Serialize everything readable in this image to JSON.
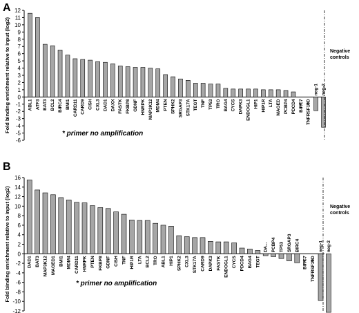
{
  "chart_data": [
    {
      "type": "bar",
      "panel": "A",
      "ylabel": "Fold binding enrichment relative to input (log2)",
      "ylim": [
        -6,
        12
      ],
      "yticks": [
        -6,
        -5,
        -4,
        -3,
        -2,
        -1,
        0,
        1,
        2,
        3,
        4,
        5,
        6,
        7,
        8,
        9,
        10,
        11,
        12
      ],
      "categories": [
        "ABL1",
        "ATF3",
        "BAT3",
        "BCL2",
        "BIRC4",
        "BMI1",
        "CARD11",
        "CARD9",
        "CISH",
        "CXL3",
        "DAD1",
        "DAXX",
        "FASTK",
        "FKBP8",
        "GDNF",
        "HNRPK",
        "MAP3K12",
        "MDM4",
        "PTEN",
        "SPHK2",
        "SRGAP3",
        "STK17A",
        "TEGT",
        "TNF",
        "TP53",
        "TRO",
        "BAG4",
        "CYCS",
        "DAPK3",
        "ENDOGL1",
        "HIP1",
        "HIP1R",
        "LTA",
        "MAGED",
        "PCBP4",
        "PDCD4",
        "BIRC7",
        "TNFRSF10D",
        "neg-1",
        "neg-2"
      ],
      "values": [
        11.6,
        11.0,
        7.3,
        7.1,
        6.5,
        5.8,
        5.3,
        5.2,
        5.1,
        4.9,
        4.8,
        4.6,
        4.3,
        4.2,
        4.1,
        4.1,
        4.0,
        3.9,
        3.1,
        2.8,
        2.5,
        2.3,
        1.9,
        1.9,
        1.8,
        1.8,
        1.2,
        1.1,
        1.1,
        1.1,
        1.1,
        1.0,
        1.0,
        1.0,
        0.9,
        0.7,
        0,
        0,
        -1.9,
        -4.2
      ],
      "starred": [
        "BIRC7",
        "TNFRSF10D"
      ],
      "note": "* primer no amplification",
      "negative_controls_label": "Negative controls"
    },
    {
      "type": "bar",
      "panel": "B",
      "ylabel": "Fold binding enrichment relative to input (log2)",
      "ylim": [
        -12,
        16
      ],
      "yticks": [
        -12,
        -10,
        -8,
        -6,
        -4,
        -2,
        0,
        2,
        4,
        6,
        8,
        10,
        12,
        14,
        16
      ],
      "categories": [
        "DAD1",
        "BAT3",
        "MAP3K12",
        "MAGED1",
        "BMI1",
        "MDM4",
        "CARD11",
        "HNRPK",
        "PTEN",
        "FKBP8",
        "GDNF",
        "CISH",
        "TNF",
        "HIP1R",
        "LTA",
        "BCL2",
        "TRO",
        "ABL1",
        "HIP1",
        "SPHK2",
        "CXL3",
        "STK17A",
        "CARD9",
        "DAPK3",
        "FASTK",
        "ENDOGL1",
        "CYCS",
        "PDCD4",
        "BAG4",
        "TEGT",
        "DA...",
        "PCBP4",
        "TP53",
        "SRGAP3",
        "BIRC4",
        "BIRC7",
        "TNFRSF10D",
        "neg-1",
        "neg-2"
      ],
      "values": [
        15.5,
        13.4,
        12.8,
        12.4,
        11.8,
        11.3,
        10.8,
        10.7,
        10.1,
        9.7,
        9.5,
        8.8,
        8.3,
        7.1,
        7.0,
        7.0,
        6.4,
        6.0,
        5.8,
        3.8,
        3.6,
        3.4,
        3.4,
        2.6,
        2.5,
        2.5,
        2.3,
        1.2,
        1.0,
        0.7,
        -0.4,
        -0.6,
        -1.0,
        -1.5,
        -1.9,
        -2.2,
        0,
        -9.8,
        -12.3
      ],
      "starred": [
        "BIRC7",
        "TNFRSF10D"
      ],
      "note": "* primer no amplification",
      "negative_controls_label": "Negative controls"
    }
  ]
}
